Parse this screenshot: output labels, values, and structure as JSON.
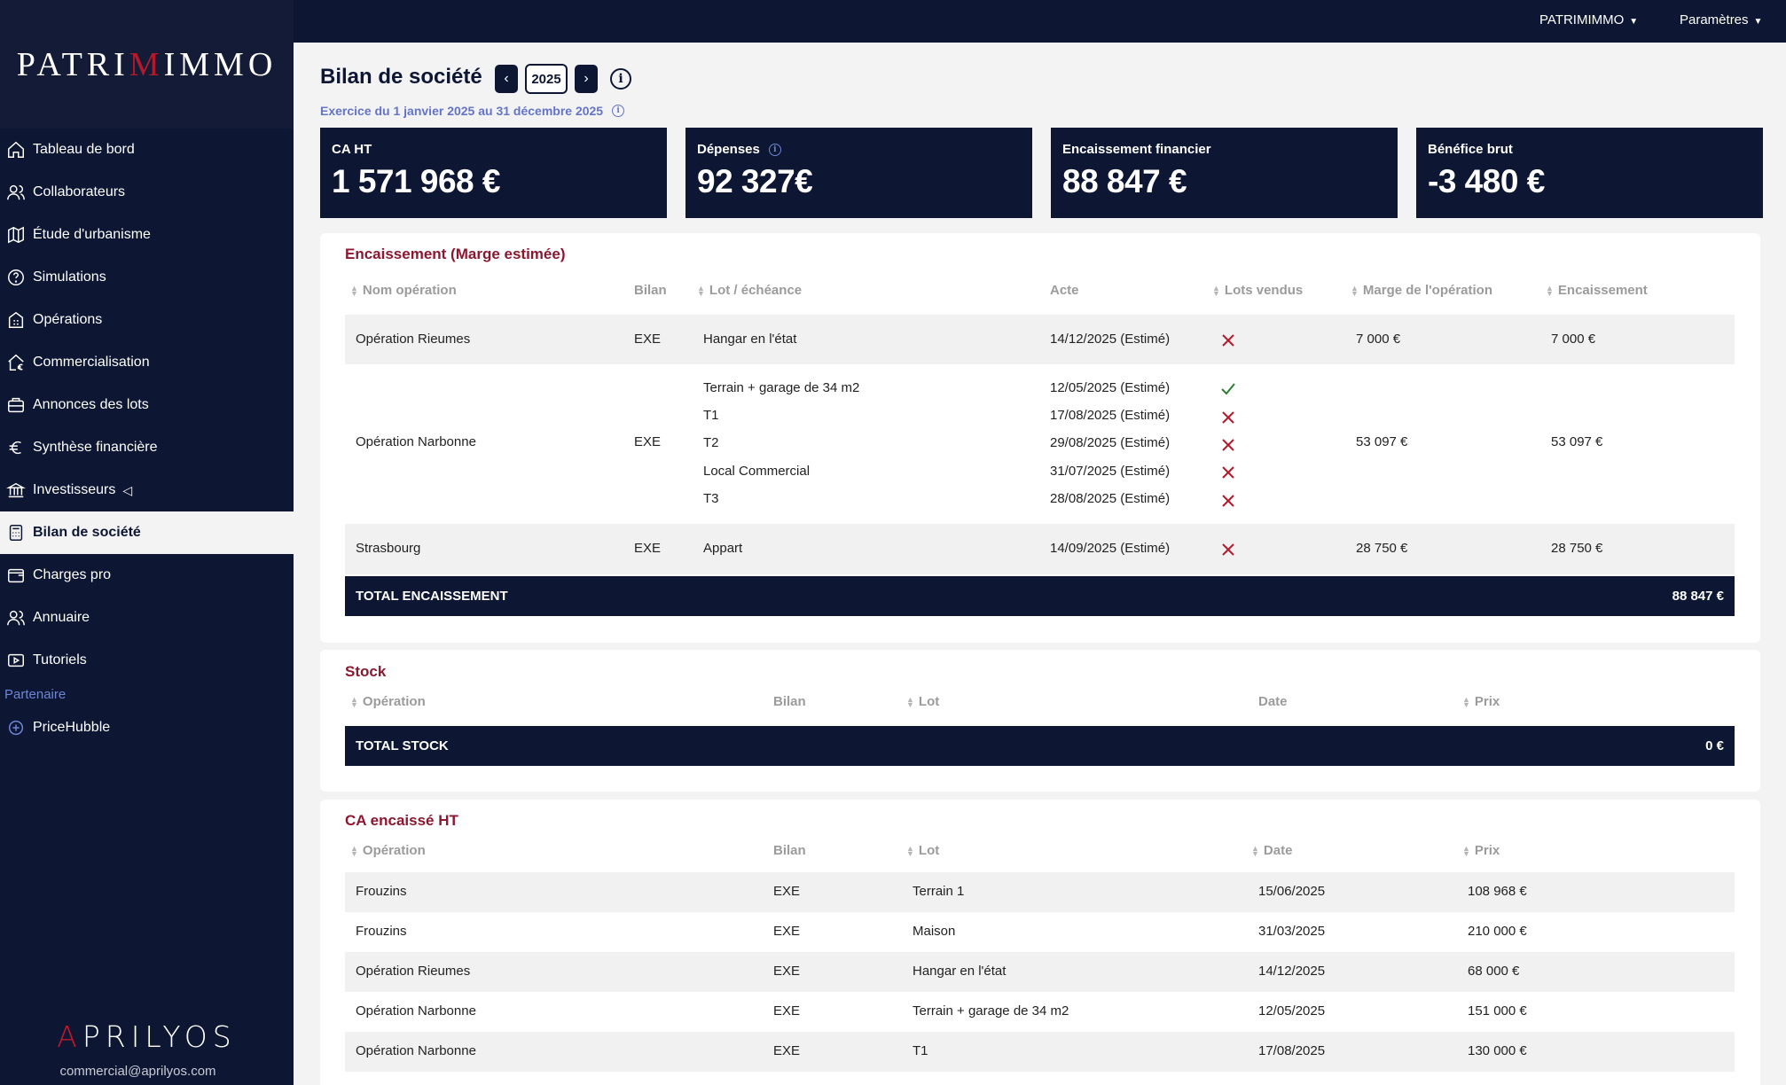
{
  "brand": {
    "logo_prefix": "PATRI",
    "logo_m": "M",
    "logo_suffix": "IMMO"
  },
  "topbar": {
    "account": "PATRIMIMMO",
    "settings": "Paramètres"
  },
  "sidebar": {
    "items": [
      {
        "label": "Tableau de bord",
        "icon": "home-icon"
      },
      {
        "label": "Collaborateurs",
        "icon": "users-icon"
      },
      {
        "label": "Étude d'urbanisme",
        "icon": "map-icon"
      },
      {
        "label": "Simulations",
        "icon": "help-circle-icon"
      },
      {
        "label": "Opérations",
        "icon": "building-icon"
      },
      {
        "label": "Commercialisation",
        "icon": "house-euro-icon"
      },
      {
        "label": "Annonces des lots",
        "icon": "briefcase-icon"
      },
      {
        "label": "Synthèse financière",
        "icon": "euro-icon"
      },
      {
        "label": "Investisseurs",
        "icon": "bank-icon"
      },
      {
        "label": "Bilan de société",
        "icon": "calculator-icon",
        "active": true
      },
      {
        "label": "Charges pro",
        "icon": "wallet-icon"
      },
      {
        "label": "Annuaire",
        "icon": "users-icon"
      },
      {
        "label": "Tutoriels",
        "icon": "play-icon"
      }
    ],
    "partner_label": "Partenaire",
    "partner_item": "PriceHubble",
    "footer_logo_a": "A",
    "footer_logo_rest": "PRILYOS",
    "footer_email": "commercial@aprilyos.com"
  },
  "header": {
    "title": "Bilan de société",
    "year": "2025",
    "exercice": "Exercice du 1 janvier 2025 au 31 décembre 2025"
  },
  "kpis": [
    {
      "label": "CA HT",
      "value": "1 571 968 €"
    },
    {
      "label": "Dépenses",
      "value": "92 327€"
    },
    {
      "label": "Encaissement financier",
      "value": "88 847 €"
    },
    {
      "label": "Bénéfice brut",
      "value": "-3 480 €"
    }
  ],
  "encaissement": {
    "title": "Encaissement (Marge estimée)",
    "headers": [
      "Nom opération",
      "Bilan",
      "Lot / échéance",
      "Acte",
      "Lots vendus",
      "Marge de l'opération",
      "Encaissement"
    ],
    "rows": [
      {
        "operation": "Opération Rieumes",
        "bilan": "EXE",
        "lots": [
          {
            "lot": "Hangar en l'état",
            "acte": "14/12/2025 (Estimé)",
            "vendu": false
          }
        ],
        "marge": "7 000 €",
        "encaissement": "7 000 €"
      },
      {
        "operation": "Opération Narbonne",
        "bilan": "EXE",
        "lots": [
          {
            "lot": "Terrain + garage de 34 m2",
            "acte": "12/05/2025 (Estimé)",
            "vendu": true
          },
          {
            "lot": "T1",
            "acte": "17/08/2025 (Estimé)",
            "vendu": false
          },
          {
            "lot": "T2",
            "acte": "29/08/2025 (Estimé)",
            "vendu": false
          },
          {
            "lot": "Local Commercial",
            "acte": "31/07/2025 (Estimé)",
            "vendu": false
          },
          {
            "lot": "T3",
            "acte": "28/08/2025 (Estimé)",
            "vendu": false
          }
        ],
        "marge": "53 097 €",
        "encaissement": "53 097 €"
      },
      {
        "operation": "Strasbourg",
        "bilan": "EXE",
        "lots": [
          {
            "lot": "Appart",
            "acte": "14/09/2025 (Estimé)",
            "vendu": false
          }
        ],
        "marge": "28 750 €",
        "encaissement": "28 750 €"
      }
    ],
    "total_label": "TOTAL ENCAISSEMENT",
    "total_value": "88 847 €"
  },
  "stock": {
    "title": "Stock",
    "headers": [
      "Opération",
      "Bilan",
      "Lot",
      "Date",
      "Prix"
    ],
    "total_label": "TOTAL STOCK",
    "total_value": "0 €"
  },
  "ca_encaisse": {
    "title": "CA encaissé HT",
    "headers": [
      "Opération",
      "Bilan",
      "Lot",
      "Date",
      "Prix"
    ],
    "rows": [
      {
        "operation": "Frouzins",
        "bilan": "EXE",
        "lot": "Terrain 1",
        "date": "15/06/2025",
        "prix": "108 968 €"
      },
      {
        "operation": "Frouzins",
        "bilan": "EXE",
        "lot": "Maison",
        "date": "31/03/2025",
        "prix": "210 000 €"
      },
      {
        "operation": "Opération Rieumes",
        "bilan": "EXE",
        "lot": "Hangar en l'état",
        "date": "14/12/2025",
        "prix": "68 000 €"
      },
      {
        "operation": "Opération Narbonne",
        "bilan": "EXE",
        "lot": "Terrain + garage de 34 m2",
        "date": "12/05/2025",
        "prix": "151 000 €"
      },
      {
        "operation": "Opération Narbonne",
        "bilan": "EXE",
        "lot": "T1",
        "date": "17/08/2025",
        "prix": "130 000 €"
      }
    ]
  },
  "colors": {
    "navy": "#0d1633",
    "crimson": "#8b1730",
    "accent_blue": "#6474c6",
    "check_green": "#2e7d32",
    "cross_red": "#b3192b"
  }
}
